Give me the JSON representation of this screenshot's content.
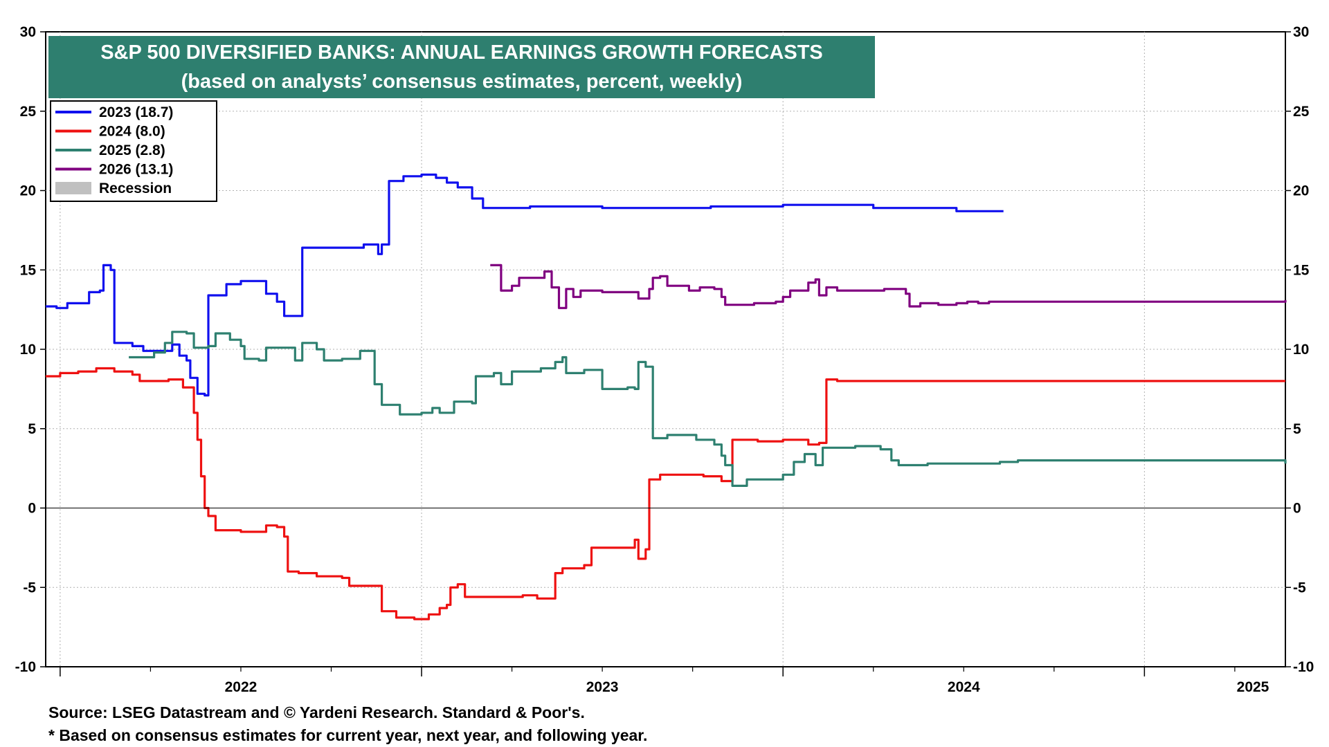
{
  "chart_data": {
    "type": "line",
    "title": "S&P 500 DIVERSIFIED BANKS: ANNUAL EARNINGS GROWTH FORECASTS",
    "subtitle": "(based on analysts’ consensus estimates, percent, weekly)",
    "ylim": [
      -10,
      30
    ],
    "yticks": [
      "30",
      "25",
      "20",
      "15",
      "10",
      "5",
      "0",
      "-5",
      "-10"
    ],
    "xlim": [
      2021.96,
      2025.39
    ],
    "x_year_labels": [
      "2022",
      "2023",
      "2024",
      "2025"
    ],
    "grid": true,
    "legend_position": "top-left",
    "legend": [
      {
        "label": "2023 (18.7)",
        "color": "#1010ee"
      },
      {
        "label": "2024 (8.0)",
        "color": "#ee1111"
      },
      {
        "label": "2025 (2.8)",
        "color": "#2e8070"
      },
      {
        "label": "2026 (13.1)",
        "color": "#800080"
      },
      {
        "label": "Recession",
        "color": "#c0c0c0"
      }
    ],
    "series": [
      {
        "name": "2023 (18.7)",
        "color": "#1010ee",
        "points": [
          [
            2021.96,
            12.7
          ],
          [
            2021.99,
            12.6
          ],
          [
            2022.02,
            12.9
          ],
          [
            2022.06,
            12.9
          ],
          [
            2022.08,
            13.6
          ],
          [
            2022.11,
            13.7
          ],
          [
            2022.12,
            15.3
          ],
          [
            2022.14,
            15.0
          ],
          [
            2022.15,
            10.4
          ],
          [
            2022.2,
            10.2
          ],
          [
            2022.23,
            9.9
          ],
          [
            2022.28,
            9.9
          ],
          [
            2022.31,
            10.3
          ],
          [
            2022.33,
            9.6
          ],
          [
            2022.35,
            9.3
          ],
          [
            2022.36,
            8.2
          ],
          [
            2022.38,
            7.2
          ],
          [
            2022.4,
            7.1
          ],
          [
            2022.41,
            13.4
          ],
          [
            2022.45,
            13.4
          ],
          [
            2022.46,
            14.1
          ],
          [
            2022.5,
            14.3
          ],
          [
            2022.55,
            14.3
          ],
          [
            2022.57,
            13.5
          ],
          [
            2022.6,
            13.0
          ],
          [
            2022.62,
            12.1
          ],
          [
            2022.66,
            12.1
          ],
          [
            2022.67,
            16.4
          ],
          [
            2022.75,
            16.4
          ],
          [
            2022.84,
            16.6
          ],
          [
            2022.88,
            16.0
          ],
          [
            2022.89,
            16.6
          ],
          [
            2022.91,
            20.6
          ],
          [
            2022.95,
            20.9
          ],
          [
            2023.0,
            21.0
          ],
          [
            2023.04,
            20.8
          ],
          [
            2023.07,
            20.5
          ],
          [
            2023.1,
            20.2
          ],
          [
            2023.14,
            19.5
          ],
          [
            2023.17,
            18.9
          ],
          [
            2023.3,
            19.0
          ],
          [
            2023.5,
            18.9
          ],
          [
            2023.8,
            19.0
          ],
          [
            2024.0,
            19.1
          ],
          [
            2024.2,
            19.1
          ],
          [
            2024.25,
            18.9
          ],
          [
            2024.46,
            18.9
          ],
          [
            2024.48,
            18.7
          ],
          [
            2024.61,
            18.7
          ]
        ]
      },
      {
        "name": "2024 (8.0)",
        "color": "#ee1111",
        "points": [
          [
            2021.96,
            8.3
          ],
          [
            2022.0,
            8.5
          ],
          [
            2022.05,
            8.6
          ],
          [
            2022.1,
            8.8
          ],
          [
            2022.13,
            8.8
          ],
          [
            2022.15,
            8.6
          ],
          [
            2022.2,
            8.4
          ],
          [
            2022.22,
            8.0
          ],
          [
            2022.3,
            8.1
          ],
          [
            2022.34,
            7.6
          ],
          [
            2022.36,
            7.6
          ],
          [
            2022.37,
            6.0
          ],
          [
            2022.38,
            4.3
          ],
          [
            2022.39,
            2.0
          ],
          [
            2022.4,
            0.0
          ],
          [
            2022.41,
            -0.5
          ],
          [
            2022.43,
            -1.4
          ],
          [
            2022.5,
            -1.5
          ],
          [
            2022.55,
            -1.5
          ],
          [
            2022.57,
            -1.1
          ],
          [
            2022.6,
            -1.2
          ],
          [
            2022.62,
            -1.8
          ],
          [
            2022.63,
            -4.0
          ],
          [
            2022.66,
            -4.1
          ],
          [
            2022.71,
            -4.3
          ],
          [
            2022.78,
            -4.4
          ],
          [
            2022.8,
            -4.9
          ],
          [
            2022.88,
            -4.9
          ],
          [
            2022.89,
            -6.5
          ],
          [
            2022.93,
            -6.9
          ],
          [
            2022.98,
            -7.0
          ],
          [
            2023.02,
            -6.7
          ],
          [
            2023.05,
            -6.3
          ],
          [
            2023.07,
            -6.1
          ],
          [
            2023.08,
            -5.0
          ],
          [
            2023.1,
            -4.8
          ],
          [
            2023.12,
            -5.6
          ],
          [
            2023.2,
            -5.6
          ],
          [
            2023.28,
            -5.5
          ],
          [
            2023.32,
            -5.7
          ],
          [
            2023.36,
            -5.7
          ],
          [
            2023.37,
            -4.1
          ],
          [
            2023.39,
            -3.8
          ],
          [
            2023.45,
            -3.6
          ],
          [
            2023.47,
            -2.5
          ],
          [
            2023.55,
            -2.5
          ],
          [
            2023.59,
            -2.0
          ],
          [
            2023.6,
            -3.2
          ],
          [
            2023.62,
            -2.6
          ],
          [
            2023.63,
            1.8
          ],
          [
            2023.66,
            2.1
          ],
          [
            2023.72,
            2.1
          ],
          [
            2023.78,
            2.0
          ],
          [
            2023.83,
            1.7
          ],
          [
            2023.86,
            4.3
          ],
          [
            2023.93,
            4.2
          ],
          [
            2024.0,
            4.3
          ],
          [
            2024.07,
            4.0
          ],
          [
            2024.1,
            4.1
          ],
          [
            2024.12,
            8.1
          ],
          [
            2024.15,
            8.0
          ],
          [
            2025.39,
            8.0
          ]
        ]
      },
      {
        "name": "2025 (2.8)",
        "color": "#2e8070",
        "points": [
          [
            2022.19,
            9.5
          ],
          [
            2022.23,
            9.5
          ],
          [
            2022.26,
            9.8
          ],
          [
            2022.29,
            10.4
          ],
          [
            2022.31,
            11.1
          ],
          [
            2022.35,
            11.0
          ],
          [
            2022.37,
            10.1
          ],
          [
            2022.41,
            10.2
          ],
          [
            2022.43,
            11.0
          ],
          [
            2022.47,
            10.6
          ],
          [
            2022.5,
            10.2
          ],
          [
            2022.51,
            9.4
          ],
          [
            2022.55,
            9.3
          ],
          [
            2022.57,
            10.1
          ],
          [
            2022.63,
            10.1
          ],
          [
            2022.65,
            9.3
          ],
          [
            2022.67,
            10.4
          ],
          [
            2022.71,
            10.0
          ],
          [
            2022.73,
            9.3
          ],
          [
            2022.78,
            9.4
          ],
          [
            2022.83,
            9.9
          ],
          [
            2022.86,
            9.9
          ],
          [
            2022.87,
            7.8
          ],
          [
            2022.89,
            6.5
          ],
          [
            2022.93,
            6.5
          ],
          [
            2022.94,
            5.9
          ],
          [
            2023.0,
            6.0
          ],
          [
            2023.03,
            6.3
          ],
          [
            2023.05,
            6.0
          ],
          [
            2023.09,
            6.7
          ],
          [
            2023.14,
            6.6
          ],
          [
            2023.15,
            8.3
          ],
          [
            2023.2,
            8.5
          ],
          [
            2023.22,
            7.8
          ],
          [
            2023.25,
            8.6
          ],
          [
            2023.33,
            8.8
          ],
          [
            2023.37,
            9.2
          ],
          [
            2023.39,
            9.5
          ],
          [
            2023.4,
            8.5
          ],
          [
            2023.45,
            8.7
          ],
          [
            2023.49,
            8.7
          ],
          [
            2023.5,
            7.5
          ],
          [
            2023.57,
            7.6
          ],
          [
            2023.59,
            7.5
          ],
          [
            2023.6,
            9.2
          ],
          [
            2023.62,
            8.9
          ],
          [
            2023.64,
            4.4
          ],
          [
            2023.68,
            4.6
          ],
          [
            2023.74,
            4.6
          ],
          [
            2023.76,
            4.3
          ],
          [
            2023.81,
            4.0
          ],
          [
            2023.83,
            3.3
          ],
          [
            2023.84,
            2.7
          ],
          [
            2023.86,
            1.4
          ],
          [
            2023.9,
            1.8
          ],
          [
            2023.95,
            1.8
          ],
          [
            2024.0,
            2.1
          ],
          [
            2024.03,
            2.9
          ],
          [
            2024.06,
            3.4
          ],
          [
            2024.09,
            2.7
          ],
          [
            2024.11,
            3.8
          ],
          [
            2024.2,
            3.9
          ],
          [
            2024.27,
            3.7
          ],
          [
            2024.3,
            3.0
          ],
          [
            2024.32,
            2.7
          ],
          [
            2024.4,
            2.8
          ],
          [
            2024.5,
            2.8
          ],
          [
            2024.6,
            2.9
          ],
          [
            2024.65,
            3.0
          ],
          [
            2025.36,
            3.0
          ],
          [
            2025.39,
            2.8
          ]
        ]
      },
      {
        "name": "2026 (13.1)",
        "color": "#800080",
        "points": [
          [
            2023.19,
            15.3
          ],
          [
            2023.21,
            15.3
          ],
          [
            2023.22,
            13.7
          ],
          [
            2023.25,
            14.0
          ],
          [
            2023.27,
            14.5
          ],
          [
            2023.32,
            14.5
          ],
          [
            2023.34,
            14.9
          ],
          [
            2023.36,
            13.9
          ],
          [
            2023.38,
            12.6
          ],
          [
            2023.4,
            13.8
          ],
          [
            2023.42,
            13.3
          ],
          [
            2023.44,
            13.7
          ],
          [
            2023.5,
            13.6
          ],
          [
            2023.57,
            13.6
          ],
          [
            2023.6,
            13.2
          ],
          [
            2023.63,
            13.8
          ],
          [
            2023.64,
            14.5
          ],
          [
            2023.66,
            14.6
          ],
          [
            2023.68,
            14.0
          ],
          [
            2023.72,
            14.0
          ],
          [
            2023.74,
            13.7
          ],
          [
            2023.77,
            13.9
          ],
          [
            2023.81,
            13.8
          ],
          [
            2023.83,
            13.3
          ],
          [
            2023.84,
            12.8
          ],
          [
            2023.9,
            12.8
          ],
          [
            2023.92,
            12.9
          ],
          [
            2023.98,
            13.0
          ],
          [
            2024.0,
            13.3
          ],
          [
            2024.02,
            13.7
          ],
          [
            2024.06,
            13.7
          ],
          [
            2024.07,
            14.2
          ],
          [
            2024.09,
            14.4
          ],
          [
            2024.1,
            13.4
          ],
          [
            2024.12,
            13.9
          ],
          [
            2024.15,
            13.7
          ],
          [
            2024.2,
            13.7
          ],
          [
            2024.28,
            13.8
          ],
          [
            2024.32,
            13.8
          ],
          [
            2024.34,
            13.5
          ],
          [
            2024.35,
            12.7
          ],
          [
            2024.38,
            12.9
          ],
          [
            2024.43,
            12.8
          ],
          [
            2024.48,
            12.9
          ],
          [
            2024.51,
            13.0
          ],
          [
            2024.54,
            12.9
          ],
          [
            2024.57,
            13.0
          ],
          [
            2024.62,
            13.0
          ],
          [
            2025.36,
            13.0
          ],
          [
            2025.39,
            13.1
          ]
        ]
      }
    ]
  },
  "footer": {
    "source": "Source: LSEG Datastream and © Yardeni Research. Standard & Poor's.",
    "note": "* Based on consensus estimates for current year, next year, and following year."
  }
}
